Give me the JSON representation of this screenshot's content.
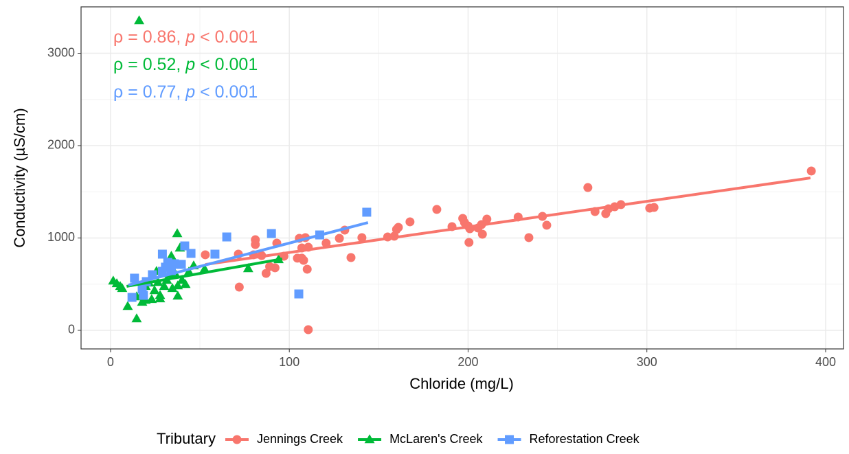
{
  "chart_data": {
    "type": "scatter",
    "x_label": "Chloride (mg/L)",
    "y_label": "Conductivity (µS/cm)",
    "xlim": [
      -16.5,
      410
    ],
    "ylim": [
      -201,
      3502
    ],
    "xticks": [
      0,
      100,
      200,
      300,
      400
    ],
    "yticks": [
      0,
      1000,
      2000,
      3000
    ],
    "xminorticks": [
      50,
      150,
      250,
      350
    ],
    "yminorticks": [
      500,
      1500,
      2500
    ],
    "grid": true,
    "legend_position": "bottom",
    "legend_title": "Tributary",
    "annotations": [
      {
        "parts": [
          "ρ = 0.86, ",
          "p",
          " < 0.001"
        ],
        "color": "#F8766D"
      },
      {
        "parts": [
          "ρ = 0.52, ",
          "p",
          " < 0.001"
        ],
        "color": "#00BA38"
      },
      {
        "parts": [
          "ρ = 0.77, ",
          "p",
          " < 0.001"
        ],
        "color": "#619CFF"
      }
    ],
    "series": [
      {
        "name": "Jennings Creek",
        "color": "#F8766D",
        "shape": "circle",
        "x": [
          53,
          71.5,
          72,
          80,
          81,
          81,
          84.5,
          87,
          89,
          92,
          93,
          97,
          104.5,
          105.6,
          107,
          107,
          108,
          109,
          110,
          110.6,
          110.6,
          120.6,
          128,
          131,
          134.5,
          140.6,
          155,
          158.7,
          160,
          161,
          167.5,
          182.5,
          191,
          197,
          198,
          200,
          200.5,
          201,
          205.5,
          207.5,
          208,
          210.5,
          228,
          234,
          241.6,
          244,
          267,
          271,
          277,
          278.5,
          282,
          285.5,
          301.6,
          304,
          392
        ],
        "y": [
          818,
          825,
          468,
          818,
          929,
          981,
          810,
          617,
          691,
          677,
          944,
          803,
          781,
          996,
          781,
          892,
          758,
          1004,
          662,
          7,
          900,
          944,
          996,
          1085,
          788,
          1004,
          1011,
          1019,
          1093,
          1115,
          1175,
          1309,
          1123,
          1212,
          1167,
          1130,
          952,
          1100,
          1108,
          1145,
          1041,
          1204,
          1227,
          1004,
          1234,
          1138,
          1546,
          1286,
          1264,
          1316,
          1338,
          1361,
          1323,
          1331,
          1725
        ],
        "fit": {
          "x": [
            53,
            391.5
          ],
          "y": [
            713,
            1650
          ]
        }
      },
      {
        "name": "McLaren's Creek",
        "color": "#00BA38",
        "shape": "triangle",
        "x": [
          16,
          1.5,
          3.5,
          5.4,
          6.5,
          9.6,
          14.6,
          14.6,
          17.7,
          18,
          19.6,
          19.6,
          21.5,
          23,
          24.6,
          25.7,
          26.5,
          27.7,
          27.7,
          30,
          31.5,
          33,
          34,
          34.6,
          36,
          37.3,
          37.6,
          37.6,
          38.8,
          40,
          41.9,
          43.8,
          46.5,
          52.6,
          77,
          94
        ],
        "y": [
          3353,
          535,
          506,
          476,
          454,
          260,
          126,
          364,
          305,
          409,
          327,
          476,
          513,
          335,
          431,
          639,
          520,
          379,
          342,
          476,
          543,
          610,
          803,
          454,
          617,
          1048,
          372,
          483,
          892,
          543,
          498,
          632,
          699,
          662,
          669,
          766
        ],
        "fit": {
          "x": [
            9,
            96
          ],
          "y": [
            476,
            773
          ]
        }
      },
      {
        "name": "Reforestation Creek",
        "color": "#619CFF",
        "shape": "square",
        "x": [
          12,
          13.4,
          17.7,
          18.4,
          20,
          23.4,
          29,
          29,
          30.7,
          32,
          33.4,
          34,
          35.7,
          38,
          39.6,
          41.5,
          45,
          58.4,
          65,
          90,
          105.3,
          117,
          143.3
        ],
        "y": [
          357,
          565,
          446,
          379,
          528,
          602,
          825,
          639,
          684,
          736,
          706,
          647,
          721,
          714,
          714,
          914,
          833,
          825,
          1011,
          1048,
          394,
          1033,
          1279
        ],
        "fit": {
          "x": [
            10,
            144
          ],
          "y": [
            490,
            1167
          ]
        }
      }
    ]
  }
}
